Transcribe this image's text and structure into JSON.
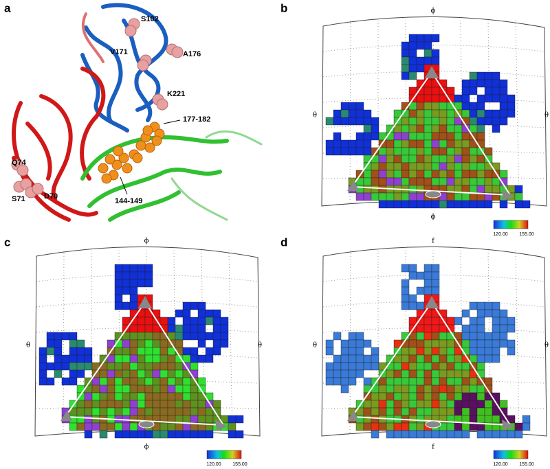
{
  "panels": [
    {
      "label": "a",
      "annotations": [
        "S102",
        "V171",
        "A176",
        "K221",
        "177-182",
        "144-149",
        "Q74",
        "S71",
        "D70"
      ]
    },
    {
      "label": "b",
      "axis_top": "ϕ",
      "axis_bottom": "ϕ",
      "axis_left": "θ",
      "axis_right": "θ",
      "colorbar": [
        "120.00",
        "155.00"
      ]
    },
    {
      "label": "c",
      "axis_top": "ϕ",
      "axis_bottom": "ϕ",
      "axis_left": "θ",
      "axis_right": "θ",
      "colorbar": [
        "120.00",
        "155.00"
      ]
    },
    {
      "label": "d",
      "axis_top": "f",
      "axis_bottom": "f",
      "axis_left": "θ",
      "axis_right": "θ",
      "colorbar": [
        "120.00",
        "155.00"
      ]
    }
  ]
}
